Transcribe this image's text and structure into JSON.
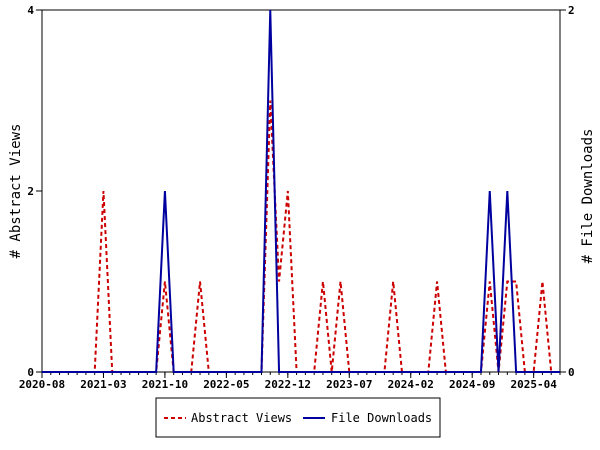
{
  "chart_data": {
    "type": "line",
    "title": "",
    "x": [
      "2020-08",
      "2020-09",
      "2020-10",
      "2020-11",
      "2020-12",
      "2021-01",
      "2021-02",
      "2021-03",
      "2021-04",
      "2021-05",
      "2021-06",
      "2021-07",
      "2021-08",
      "2021-09",
      "2021-10",
      "2021-11",
      "2021-12",
      "2022-01",
      "2022-02",
      "2022-03",
      "2022-04",
      "2022-05",
      "2022-06",
      "2022-07",
      "2022-08",
      "2022-09",
      "2022-10",
      "2022-11",
      "2022-12",
      "2023-01",
      "2023-02",
      "2023-03",
      "2023-04",
      "2023-05",
      "2023-06",
      "2023-07",
      "2023-08",
      "2023-09",
      "2023-10",
      "2023-11",
      "2023-12",
      "2024-01",
      "2024-02",
      "2024-03",
      "2024-04",
      "2024-05",
      "2024-06",
      "2024-07",
      "2024-08",
      "2024-09",
      "2024-10",
      "2024-11",
      "2024-12",
      "2025-01",
      "2025-02",
      "2025-03",
      "2025-04",
      "2025-05",
      "2025-06",
      "2025-07"
    ],
    "x_tick_labels": [
      "2020-08",
      "2021-03",
      "2021-10",
      "2022-05",
      "2022-12",
      "2023-07",
      "2024-02",
      "2024-09",
      "2025-04"
    ],
    "y_left": {
      "label": "# Abstract Views",
      "range": [
        0,
        4
      ],
      "ticks": [
        "0",
        "2",
        "4"
      ]
    },
    "y_right": {
      "label": "# File Downloads",
      "range": [
        0,
        2
      ],
      "ticks": [
        "0",
        "2"
      ]
    },
    "series": [
      {
        "name": "Abstract Views",
        "axis": "left",
        "color": "#cc0000",
        "style": "dashed",
        "values": [
          0,
          0,
          0,
          0,
          0,
          0,
          0,
          2,
          0,
          0,
          0,
          0,
          0,
          0,
          1,
          0,
          0,
          0,
          1,
          0,
          0,
          0,
          0,
          0,
          0,
          0,
          3,
          1,
          2,
          0,
          0,
          0,
          1,
          0,
          1,
          0,
          0,
          0,
          0,
          0,
          1,
          0,
          0,
          0,
          0,
          1,
          0,
          0,
          0,
          0,
          0,
          1,
          0,
          1,
          1,
          0,
          0,
          1,
          0,
          0
        ]
      },
      {
        "name": "File Downloads",
        "axis": "right",
        "color": "#00009e",
        "style": "solid",
        "values": [
          0,
          0,
          0,
          0,
          0,
          0,
          0,
          0,
          0,
          0,
          0,
          0,
          0,
          0,
          1,
          0,
          0,
          0,
          0,
          0,
          0,
          0,
          0,
          0,
          0,
          0,
          2,
          0,
          0,
          0,
          0,
          0,
          0,
          0,
          0,
          0,
          0,
          0,
          0,
          0,
          0,
          0,
          0,
          0,
          0,
          0,
          0,
          0,
          0,
          0,
          0,
          1,
          0,
          1,
          0,
          0,
          0,
          0,
          0,
          0
        ]
      }
    ],
    "legend_position": "bottom-center",
    "grid": false
  }
}
